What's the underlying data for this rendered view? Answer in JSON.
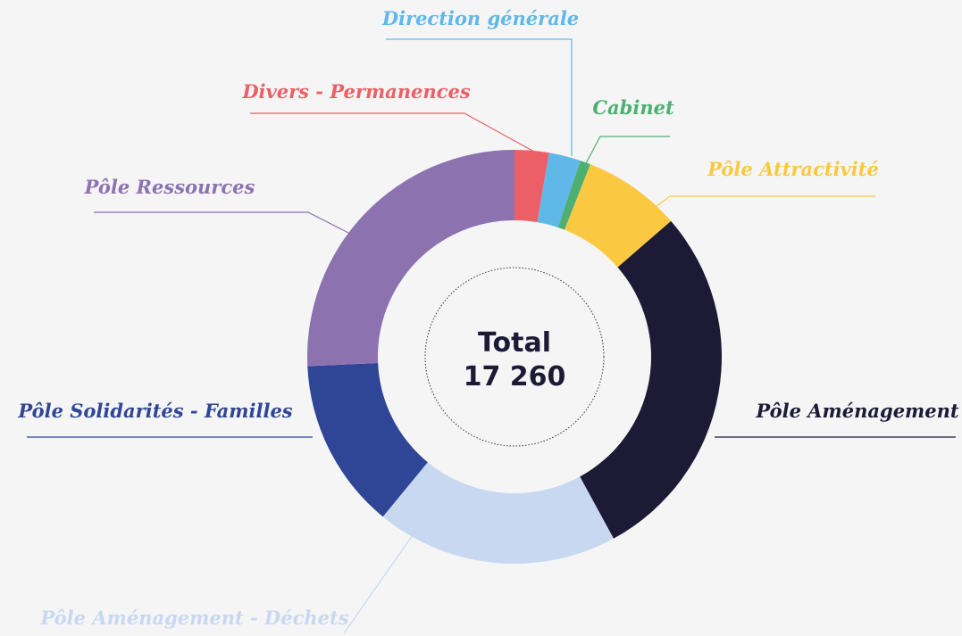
{
  "chart_data": {
    "type": "donut",
    "categories": [
      "Divers - Permanences",
      "Direction générale",
      "Cabinet",
      "Pôle Attractivité",
      "Pôle Aménagement",
      "Pôle Aménagement - Déchets",
      "Pôle Solidarités - Familles",
      "Pôle Ressources"
    ],
    "values": [
      460,
      430,
      140,
      1320,
      4910,
      3260,
      2300,
      4440
    ],
    "colors": [
      "#ec5f66",
      "#5fb8e8",
      "#4daf72",
      "#fbc841",
      "#1c1a35",
      "#c8d8f1",
      "#2f4696",
      "#8c73b0"
    ],
    "center_title": "Total",
    "center_value": "17 260"
  }
}
